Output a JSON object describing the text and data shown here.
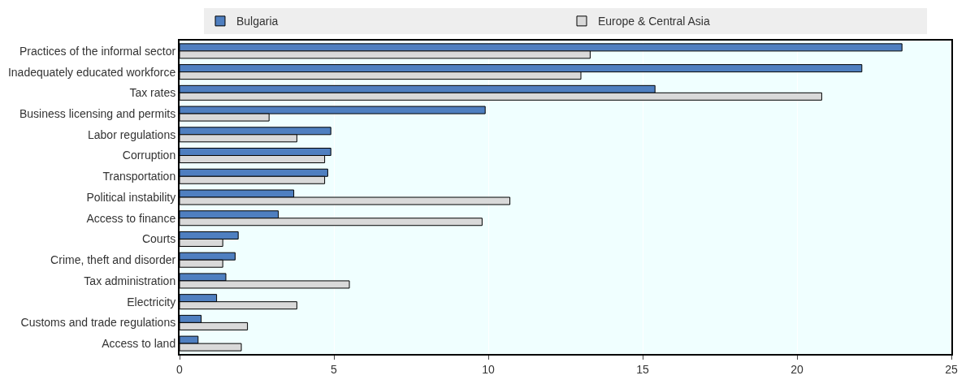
{
  "chart_data": {
    "type": "bar",
    "orientation": "horizontal",
    "categories": [
      "Practices of the informal sector",
      "Inadequately educated workforce",
      "Tax rates",
      "Business licensing and permits",
      "Labor regulations",
      "Corruption",
      "Transportation",
      "Political instability",
      "Access to finance",
      "Courts",
      "Crime, theft and disorder",
      "Tax administration",
      "Electricity",
      "Customs and trade regulations",
      "Access to land"
    ],
    "series": [
      {
        "name": "Bulgaria",
        "color": "#4f7fc0",
        "values": [
          23.4,
          22.1,
          15.4,
          9.9,
          4.9,
          4.9,
          4.8,
          3.7,
          3.2,
          1.9,
          1.8,
          1.5,
          1.2,
          0.7,
          0.6
        ]
      },
      {
        "name": "Europe & Central Asia",
        "color": "#d9d9d9",
        "values": [
          13.3,
          13.0,
          20.8,
          2.9,
          3.8,
          4.7,
          4.7,
          10.7,
          9.8,
          1.4,
          1.4,
          5.5,
          3.8,
          2.2,
          2.0
        ]
      }
    ],
    "xlim": [
      0,
      25
    ],
    "xticks": [
      0,
      5,
      10,
      15,
      20,
      25
    ],
    "grid": "x",
    "legend": "top"
  }
}
